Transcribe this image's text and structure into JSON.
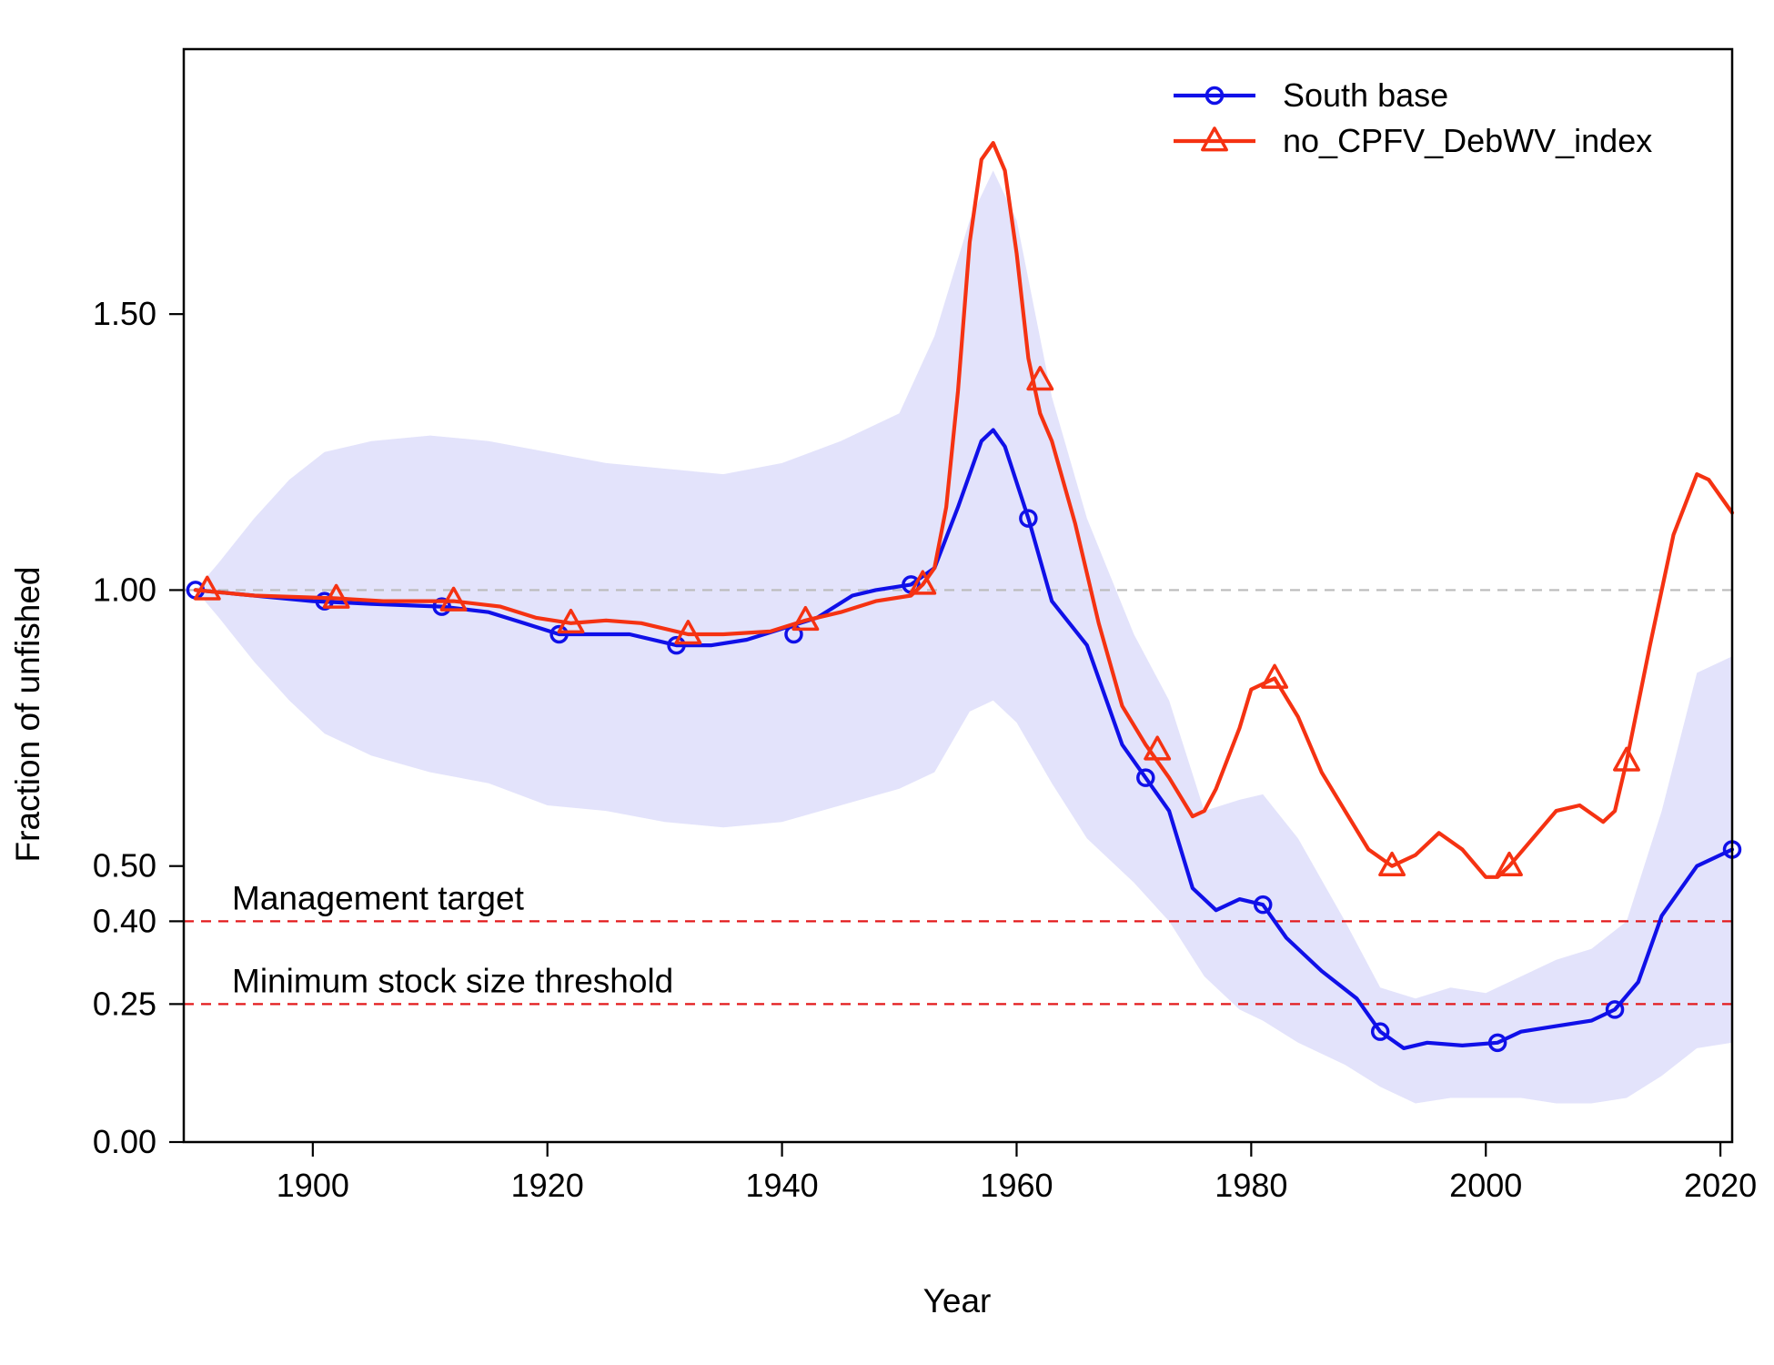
{
  "chart_data": {
    "type": "line",
    "title": "",
    "xlabel": "Year",
    "ylabel": "Fraction of unfished",
    "xlim": [
      1889,
      2021
    ],
    "ylim": [
      0,
      1.98
    ],
    "x_ticks": [
      1900,
      1920,
      1940,
      1960,
      1980,
      2000,
      2020
    ],
    "y_ticks": [
      0.0,
      0.25,
      0.4,
      0.5,
      1.0,
      1.5
    ],
    "y_tick_labels": [
      "0.00",
      "0.25",
      "0.40",
      "0.50",
      "1.00",
      "1.50"
    ],
    "grid": false,
    "legend": {
      "position": "top-right"
    },
    "reference_lines": [
      {
        "y": 1.0,
        "label": "",
        "color": "#bbbbbb"
      },
      {
        "y": 0.4,
        "label": "Management target",
        "color": "#e31a1c"
      },
      {
        "y": 0.25,
        "label": "Minimum stock size threshold",
        "color": "#e31a1c"
      }
    ],
    "band": {
      "color": "#e3e3fb",
      "x": [
        1890,
        1892,
        1895,
        1898,
        1901,
        1905,
        1910,
        1915,
        1920,
        1925,
        1930,
        1935,
        1940,
        1945,
        1950,
        1953,
        1956,
        1958,
        1960,
        1963,
        1966,
        1970,
        1973,
        1976,
        1979,
        1981,
        1984,
        1988,
        1991,
        1994,
        1997,
        2000,
        2003,
        2006,
        2009,
        2012,
        2015,
        2018,
        2021
      ],
      "upper": [
        1.0,
        1.05,
        1.13,
        1.2,
        1.25,
        1.27,
        1.28,
        1.27,
        1.25,
        1.23,
        1.22,
        1.21,
        1.23,
        1.27,
        1.32,
        1.46,
        1.67,
        1.76,
        1.67,
        1.35,
        1.13,
        0.92,
        0.8,
        0.6,
        0.62,
        0.63,
        0.55,
        0.4,
        0.28,
        0.26,
        0.28,
        0.27,
        0.3,
        0.33,
        0.35,
        0.4,
        0.6,
        0.85,
        0.88
      ],
      "lower": [
        1.0,
        0.95,
        0.87,
        0.8,
        0.74,
        0.7,
        0.67,
        0.65,
        0.61,
        0.6,
        0.58,
        0.57,
        0.58,
        0.61,
        0.64,
        0.67,
        0.78,
        0.8,
        0.76,
        0.65,
        0.55,
        0.47,
        0.4,
        0.3,
        0.24,
        0.22,
        0.18,
        0.14,
        0.1,
        0.07,
        0.08,
        0.08,
        0.08,
        0.07,
        0.07,
        0.08,
        0.12,
        0.17,
        0.18
      ]
    },
    "series": [
      {
        "name": "South base",
        "color": "#1010e8",
        "marker": "circle",
        "x": [
          1890,
          1895,
          1900,
          1905,
          1911,
          1915,
          1918,
          1921,
          1924,
          1927,
          1931,
          1934,
          1937,
          1940,
          1943,
          1946,
          1948,
          1951,
          1953,
          1955,
          1957,
          1958,
          1959,
          1961,
          1963,
          1966,
          1969,
          1971,
          1973,
          1975,
          1977,
          1979,
          1981,
          1983,
          1986,
          1989,
          1991,
          1993,
          1995,
          1998,
          2001,
          2003,
          2006,
          2009,
          2011,
          2013,
          2015,
          2018,
          2021
        ],
        "y": [
          1.0,
          0.99,
          0.98,
          0.975,
          0.97,
          0.96,
          0.94,
          0.92,
          0.92,
          0.92,
          0.9,
          0.9,
          0.91,
          0.93,
          0.95,
          0.99,
          1.0,
          1.01,
          1.04,
          1.15,
          1.27,
          1.29,
          1.26,
          1.13,
          0.98,
          0.9,
          0.72,
          0.66,
          0.6,
          0.46,
          0.42,
          0.44,
          0.43,
          0.37,
          0.31,
          0.26,
          0.2,
          0.17,
          0.18,
          0.175,
          0.18,
          0.2,
          0.21,
          0.22,
          0.24,
          0.29,
          0.41,
          0.5,
          0.53
        ],
        "marker_x": [
          1890,
          1901,
          1911,
          1921,
          1931,
          1941,
          1951,
          1961,
          1971,
          1981,
          1991,
          2001,
          2011,
          2021
        ],
        "marker_y": [
          1.0,
          0.98,
          0.97,
          0.92,
          0.9,
          0.92,
          1.01,
          1.13,
          0.66,
          0.43,
          0.2,
          0.18,
          0.24,
          0.53
        ]
      },
      {
        "name": "no_CPFV_DebWV_index",
        "color": "#f53212",
        "marker": "triangle",
        "x": [
          1890,
          1895,
          1902,
          1906,
          1912,
          1916,
          1919,
          1922,
          1925,
          1928,
          1932,
          1935,
          1939,
          1942,
          1945,
          1948,
          1951,
          1952,
          1953,
          1954,
          1955,
          1956,
          1957,
          1958,
          1959,
          1960,
          1961,
          1962,
          1963,
          1965,
          1967,
          1969,
          1971,
          1973,
          1975,
          1976,
          1977,
          1979,
          1980,
          1982,
          1984,
          1986,
          1988,
          1990,
          1992,
          1994,
          1996,
          1998,
          2000,
          2001,
          2002,
          2004,
          2006,
          2008,
          2010,
          2011,
          2012,
          2014,
          2016,
          2018,
          2019,
          2021
        ],
        "y": [
          1.0,
          0.99,
          0.985,
          0.98,
          0.98,
          0.97,
          0.95,
          0.94,
          0.945,
          0.94,
          0.92,
          0.92,
          0.925,
          0.945,
          0.96,
          0.98,
          0.99,
          1.01,
          1.04,
          1.15,
          1.36,
          1.63,
          1.78,
          1.81,
          1.76,
          1.61,
          1.42,
          1.32,
          1.27,
          1.12,
          0.94,
          0.79,
          0.72,
          0.66,
          0.59,
          0.6,
          0.64,
          0.75,
          0.82,
          0.84,
          0.77,
          0.67,
          0.6,
          0.53,
          0.5,
          0.52,
          0.56,
          0.53,
          0.48,
          0.48,
          0.5,
          0.55,
          0.6,
          0.61,
          0.58,
          0.6,
          0.69,
          0.9,
          1.1,
          1.21,
          1.2,
          1.14
        ],
        "marker_x": [
          1891,
          1902,
          1912,
          1922,
          1932,
          1942,
          1952,
          1962,
          1972,
          1982,
          1992,
          2002,
          2012
        ],
        "marker_y": [
          1.0,
          0.985,
          0.98,
          0.94,
          0.92,
          0.945,
          1.01,
          1.38,
          0.71,
          0.84,
          0.5,
          0.5,
          0.69
        ]
      }
    ]
  }
}
